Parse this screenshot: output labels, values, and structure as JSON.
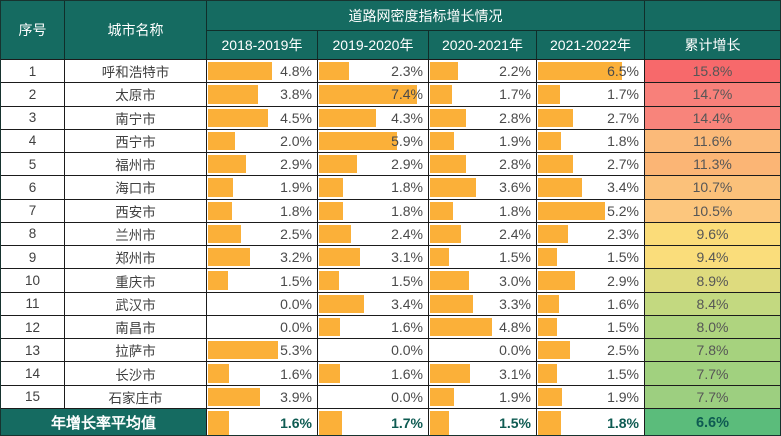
{
  "table": {
    "header": {
      "col_index": "序号",
      "col_city": "城市名称",
      "group_title": "道路网密度指标增长情况",
      "year_cols": [
        "2018-2019年",
        "2019-2020年",
        "2020-2021年",
        "2021-2022年"
      ],
      "col_total": "累计增长"
    },
    "rows": [
      {
        "index": "1",
        "city": "呼和浩特市",
        "values": [
          "4.8%",
          "2.3%",
          "2.2%",
          "6.5%"
        ],
        "total": "15.8%",
        "total_color": "#F7696B"
      },
      {
        "index": "2",
        "city": "太原市",
        "values": [
          "3.8%",
          "7.4%",
          "1.7%",
          "1.7%"
        ],
        "total": "14.7%",
        "total_color": "#F8807A"
      },
      {
        "index": "3",
        "city": "南宁市",
        "values": [
          "4.5%",
          "4.3%",
          "2.8%",
          "2.7%"
        ],
        "total": "14.4%",
        "total_color": "#F8847B"
      },
      {
        "index": "4",
        "city": "西宁市",
        "values": [
          "2.0%",
          "5.9%",
          "1.9%",
          "1.8%"
        ],
        "total": "11.6%",
        "total_color": "#FBBA79"
      },
      {
        "index": "5",
        "city": "福州市",
        "values": [
          "2.9%",
          "2.9%",
          "2.8%",
          "2.7%"
        ],
        "total": "11.3%",
        "total_color": "#FBB575"
      },
      {
        "index": "6",
        "city": "海口市",
        "values": [
          "1.9%",
          "1.8%",
          "3.6%",
          "3.4%"
        ],
        "total": "10.7%",
        "total_color": "#FBC17A"
      },
      {
        "index": "7",
        "city": "西安市",
        "values": [
          "1.8%",
          "1.8%",
          "1.8%",
          "5.2%"
        ],
        "total": "10.5%",
        "total_color": "#FCC67D"
      },
      {
        "index": "8",
        "city": "兰州市",
        "values": [
          "2.5%",
          "2.4%",
          "2.4%",
          "2.3%"
        ],
        "total": "9.6%",
        "total_color": "#FBDC79"
      },
      {
        "index": "9",
        "city": "郑州市",
        "values": [
          "3.2%",
          "3.1%",
          "1.5%",
          "1.5%"
        ],
        "total": "9.4%",
        "total_color": "#FADD7B"
      },
      {
        "index": "10",
        "city": "重庆市",
        "values": [
          "1.5%",
          "1.5%",
          "3.0%",
          "2.9%"
        ],
        "total": "8.9%",
        "total_color": "#DEDB7E"
      },
      {
        "index": "11",
        "city": "武汉市",
        "values": [
          "0.0%",
          "3.4%",
          "3.3%",
          "1.6%"
        ],
        "total": "8.4%",
        "total_color": "#C3D980"
      },
      {
        "index": "12",
        "city": "南昌市",
        "values": [
          "0.0%",
          "1.6%",
          "4.8%",
          "1.5%"
        ],
        "total": "8.0%",
        "total_color": "#AFD47F"
      },
      {
        "index": "13",
        "city": "拉萨市",
        "values": [
          "5.3%",
          "0.0%",
          "0.0%",
          "2.5%"
        ],
        "total": "7.8%",
        "total_color": "#A6D27E"
      },
      {
        "index": "14",
        "city": "长沙市",
        "values": [
          "1.6%",
          "1.6%",
          "3.1%",
          "1.5%"
        ],
        "total": "7.7%",
        "total_color": "#A1D17F"
      },
      {
        "index": "15",
        "city": "石家庄市",
        "values": [
          "3.9%",
          "0.0%",
          "1.9%",
          "1.9%"
        ],
        "total": "7.7%",
        "total_color": "#9DCF80"
      }
    ],
    "footer": {
      "label": "年增长率平均值",
      "values": [
        "1.6%",
        "1.7%",
        "1.5%",
        "1.8%"
      ],
      "total": "6.6%",
      "total_color": "#5BBC7B"
    }
  },
  "colors": {
    "header_bg": "#156B61",
    "bar": "#FBB039",
    "scale_max_red": "#F7696B",
    "scale_mid_yellow": "#FBDC79",
    "scale_min_green": "#5BBC7B"
  },
  "bar_scale_max_percent": 8.3,
  "chart_data": {
    "type": "table",
    "title": "道路网密度指标增长情况",
    "columns": [
      "序号",
      "城市名称",
      "2018-2019年",
      "2019-2020年",
      "2020-2021年",
      "2021-2022年",
      "累计增长"
    ],
    "rows": [
      [
        1,
        "呼和浩特市",
        4.8,
        2.3,
        2.2,
        6.5,
        15.8
      ],
      [
        2,
        "太原市",
        3.8,
        7.4,
        1.7,
        1.7,
        14.7
      ],
      [
        3,
        "南宁市",
        4.5,
        4.3,
        2.8,
        2.7,
        14.4
      ],
      [
        4,
        "西宁市",
        2.0,
        5.9,
        1.9,
        1.8,
        11.6
      ],
      [
        5,
        "福州市",
        2.9,
        2.9,
        2.8,
        2.7,
        11.3
      ],
      [
        6,
        "海口市",
        1.9,
        1.8,
        3.6,
        3.4,
        10.7
      ],
      [
        7,
        "西安市",
        1.8,
        1.8,
        1.8,
        5.2,
        10.5
      ],
      [
        8,
        "兰州市",
        2.5,
        2.4,
        2.4,
        2.3,
        9.6
      ],
      [
        9,
        "郑州市",
        3.2,
        3.1,
        1.5,
        1.5,
        9.4
      ],
      [
        10,
        "重庆市",
        1.5,
        1.5,
        3.0,
        2.9,
        8.9
      ],
      [
        11,
        "武汉市",
        0.0,
        3.4,
        3.3,
        1.6,
        8.4
      ],
      [
        12,
        "南昌市",
        0.0,
        1.6,
        4.8,
        1.5,
        8.0
      ],
      [
        13,
        "拉萨市",
        5.3,
        0.0,
        0.0,
        2.5,
        7.8
      ],
      [
        14,
        "长沙市",
        1.6,
        1.6,
        3.1,
        1.5,
        7.7
      ],
      [
        15,
        "石家庄市",
        3.9,
        0.0,
        1.9,
        1.9,
        7.7
      ]
    ],
    "footer_row": [
      "年增长率平均值",
      1.6,
      1.7,
      1.5,
      1.8,
      6.6
    ],
    "styling_notes": "年度列内为橙色数据条(以约8.3%为满刻度), 累计增长列为红-黄-绿色阶",
    "units": "percent"
  }
}
